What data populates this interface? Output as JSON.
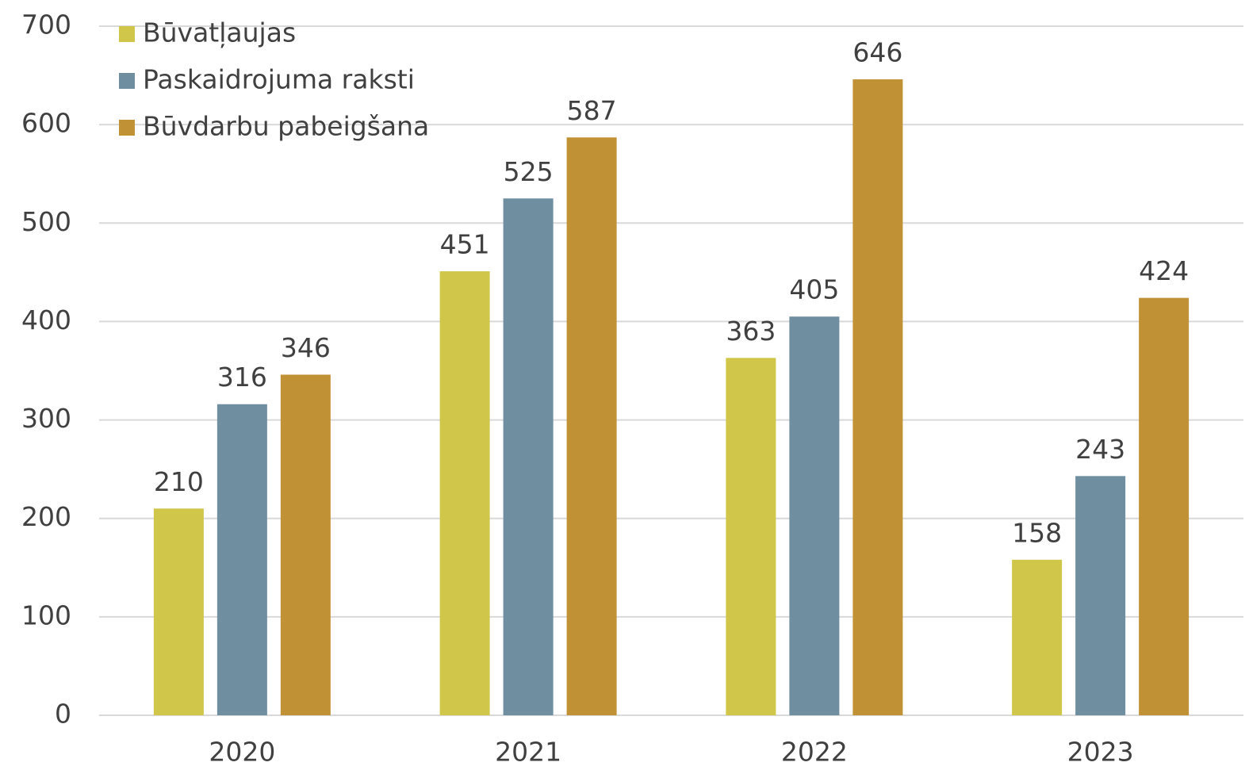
{
  "chart_data": {
    "type": "bar",
    "categories": [
      "2020",
      "2021",
      "2022",
      "2023"
    ],
    "series": [
      {
        "name": "Būvatļaujas",
        "color": "#cfc64a",
        "values": [
          210,
          451,
          363,
          158
        ]
      },
      {
        "name": "Paskaidrojuma raksti",
        "color": "#6f8fa0",
        "values": [
          316,
          525,
          405,
          243
        ]
      },
      {
        "name": "Būvdarbu pabeigšana",
        "color": "#c09235",
        "values": [
          346,
          587,
          646,
          424
        ]
      }
    ],
    "ylim": [
      0,
      700
    ],
    "yticks": [
      0,
      100,
      200,
      300,
      400,
      500,
      600,
      700
    ],
    "grid": true,
    "legend": "top-left"
  }
}
